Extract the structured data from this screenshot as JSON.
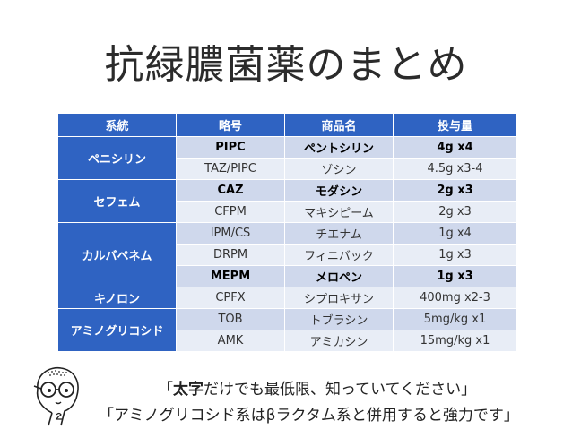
{
  "title": "抗緑膿菌薬のまとめ",
  "table": {
    "headers": [
      "系統",
      "略号",
      "商品名",
      "投与量"
    ],
    "groups": [
      {
        "class": "ペニシリン",
        "rows": [
          {
            "abbr": "PIPC",
            "product": "ペントシリン",
            "dose": "4g x4",
            "bold": true
          },
          {
            "abbr": "TAZ/PIPC",
            "product": "ゾシン",
            "dose": "4.5g x3-4",
            "bold": false
          }
        ]
      },
      {
        "class": "セフェム",
        "rows": [
          {
            "abbr": "CAZ",
            "product": "モダシン",
            "dose": "2g x3",
            "bold": true
          },
          {
            "abbr": "CFPM",
            "product": "マキシピーム",
            "dose": "2g x3",
            "bold": false
          }
        ]
      },
      {
        "class": "カルバペネム",
        "rows": [
          {
            "abbr": "IPM/CS",
            "product": "チエナム",
            "dose": "1g x4",
            "bold": false
          },
          {
            "abbr": "DRPM",
            "product": "フィニバック",
            "dose": "1g x3",
            "bold": false
          },
          {
            "abbr": "MEPM",
            "product": "メロペン",
            "dose": "1g x3",
            "bold": true
          }
        ]
      },
      {
        "class": "キノロン",
        "rows": [
          {
            "abbr": "CPFX",
            "product": "シプロキサン",
            "dose": "400mg x2-3",
            "bold": false
          }
        ]
      },
      {
        "class": "アミノグリコシド",
        "rows": [
          {
            "abbr": "TOB",
            "product": "トブラシン",
            "dose": "5mg/kg x1",
            "bold": false
          },
          {
            "abbr": "AMK",
            "product": "アミカシン",
            "dose": "15mg/kg x1",
            "bold": false
          }
        ]
      }
    ]
  },
  "notes": {
    "line1_open": "「",
    "line1_bold": "太字",
    "line1_rest": "だけでも最低限、知っていてください」",
    "line2": "「アミノグリコシド系はβラクタム系と併用すると強力です」"
  },
  "colors": {
    "header": "#2f63c2",
    "row_light": "#cfd8ec",
    "row_dark": "#e8edf6"
  }
}
